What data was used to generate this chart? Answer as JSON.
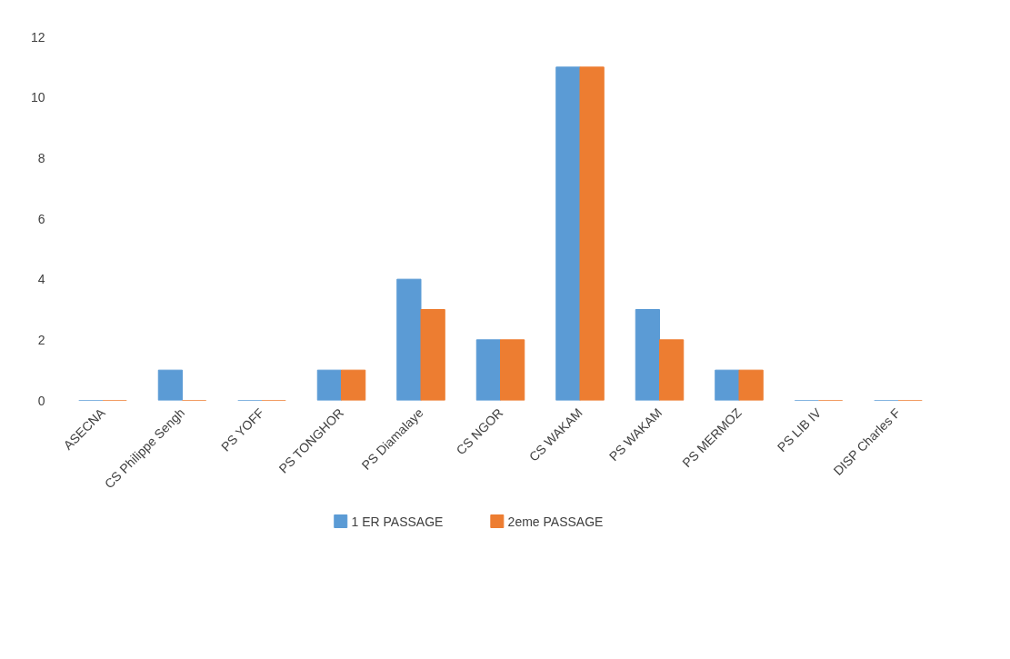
{
  "chart_data": {
    "type": "bar",
    "categories": [
      "ASECNA",
      "CS Philippe Sengh",
      "PS YOFF",
      "PS TONGHOR",
      "PS Diamalaye",
      "CS NGOR",
      "CS WAKAM",
      "PS WAKAM",
      "PS MERMOZ",
      "PS LIB IV",
      "DISP Charles F"
    ],
    "series": [
      {
        "name": "1 ER PASSAGE",
        "color": "#5b9bd5",
        "values": [
          0,
          1,
          0,
          1,
          4,
          2,
          11,
          3,
          1,
          0,
          0
        ]
      },
      {
        "name": "2eme PASSAGE",
        "color": "#ed7d31",
        "values": [
          0,
          0,
          0,
          1,
          3,
          2,
          11,
          2,
          1,
          0,
          0
        ]
      }
    ],
    "ylim": [
      0,
      12
    ],
    "yticks": [
      0,
      2,
      4,
      6,
      8,
      10,
      12
    ],
    "grid": false,
    "legend": "bottom"
  }
}
